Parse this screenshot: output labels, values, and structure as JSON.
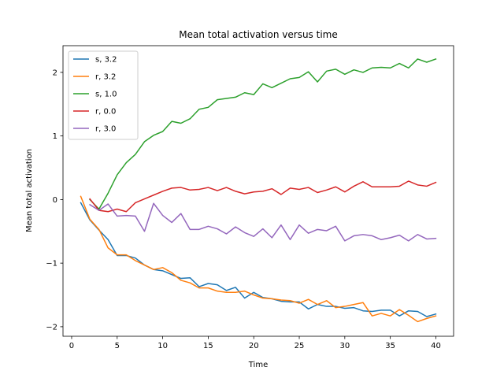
{
  "chart_data": {
    "type": "line",
    "title": "Mean total activation versus time",
    "xlabel": "Time",
    "ylabel": "Mean total activation",
    "xlim": [
      -0.95,
      41.95
    ],
    "ylim": [
      -2.15,
      2.42
    ],
    "xticks": [
      0,
      5,
      10,
      15,
      20,
      25,
      30,
      35,
      40
    ],
    "yticks": [
      -2,
      -1,
      0,
      1,
      2
    ],
    "xtick_labels": [
      "0",
      "5",
      "10",
      "15",
      "20",
      "25",
      "30",
      "35",
      "40"
    ],
    "ytick_labels": [
      "−2",
      "−1",
      "0",
      "1",
      "2"
    ],
    "grid": false,
    "legend_position": "upper left",
    "series": [
      {
        "name": "s, 3.2",
        "color": "#1f77b4",
        "x": [
          1,
          2,
          3,
          4,
          5,
          6,
          7,
          8,
          9,
          10,
          11,
          12,
          13,
          14,
          15,
          16,
          17,
          18,
          19,
          20,
          21,
          22,
          23,
          24,
          25,
          26,
          27,
          28,
          29,
          30,
          31,
          32,
          33,
          34,
          35,
          36,
          37,
          38,
          39,
          40
        ],
        "y": [
          -0.05,
          -0.32,
          -0.48,
          -0.63,
          -0.88,
          -0.88,
          -0.92,
          -1.03,
          -1.1,
          -1.12,
          -1.18,
          -1.24,
          -1.23,
          -1.37,
          -1.32,
          -1.34,
          -1.43,
          -1.38,
          -1.55,
          -1.46,
          -1.54,
          -1.56,
          -1.6,
          -1.61,
          -1.61,
          -1.72,
          -1.65,
          -1.68,
          -1.68,
          -1.71,
          -1.7,
          -1.75,
          -1.76,
          -1.74,
          -1.74,
          -1.83,
          -1.75,
          -1.76,
          -1.84,
          -1.8
        ]
      },
      {
        "name": "r, 3.2",
        "color": "#ff7f0e",
        "x": [
          1,
          2,
          3,
          4,
          5,
          6,
          7,
          8,
          9,
          10,
          11,
          12,
          13,
          14,
          15,
          16,
          17,
          18,
          19,
          20,
          21,
          22,
          23,
          24,
          25,
          26,
          27,
          28,
          29,
          30,
          31,
          32,
          33,
          34,
          35,
          36,
          37,
          38,
          39,
          40
        ],
        "y": [
          0.05,
          -0.31,
          -0.47,
          -0.76,
          -0.87,
          -0.87,
          -0.96,
          -1.03,
          -1.1,
          -1.07,
          -1.15,
          -1.27,
          -1.31,
          -1.39,
          -1.39,
          -1.44,
          -1.46,
          -1.46,
          -1.44,
          -1.5,
          -1.55,
          -1.56,
          -1.58,
          -1.59,
          -1.63,
          -1.57,
          -1.65,
          -1.59,
          -1.7,
          -1.68,
          -1.65,
          -1.62,
          -1.83,
          -1.79,
          -1.83,
          -1.73,
          -1.82,
          -1.92,
          -1.87,
          -1.83
        ]
      },
      {
        "name": "s, 1.0",
        "color": "#2ca02c",
        "x": [
          2,
          3,
          4,
          5,
          6,
          7,
          8,
          9,
          10,
          11,
          12,
          13,
          14,
          15,
          16,
          17,
          18,
          19,
          20,
          21,
          22,
          23,
          24,
          25,
          26,
          27,
          28,
          29,
          30,
          31,
          32,
          33,
          34,
          35,
          36,
          37,
          38,
          39,
          40
        ],
        "y": [
          0.0,
          -0.15,
          0.1,
          0.39,
          0.58,
          0.71,
          0.91,
          1.01,
          1.07,
          1.23,
          1.2,
          1.27,
          1.42,
          1.45,
          1.57,
          1.59,
          1.61,
          1.68,
          1.65,
          1.82,
          1.76,
          1.83,
          1.9,
          1.92,
          2.01,
          1.85,
          2.02,
          2.05,
          1.97,
          2.04,
          2.0,
          2.07,
          2.08,
          2.07,
          2.14,
          2.07,
          2.21,
          2.16,
          2.21
        ]
      },
      {
        "name": "r, 0.0",
        "color": "#d62728",
        "x": [
          2,
          3,
          4,
          5,
          6,
          7,
          8,
          9,
          10,
          11,
          12,
          13,
          14,
          15,
          16,
          17,
          18,
          19,
          20,
          21,
          22,
          23,
          24,
          25,
          26,
          27,
          28,
          29,
          30,
          31,
          32,
          33,
          34,
          35,
          36,
          37,
          38,
          39,
          40
        ],
        "y": [
          0.01,
          -0.17,
          -0.19,
          -0.15,
          -0.19,
          -0.05,
          0.01,
          0.07,
          0.13,
          0.18,
          0.19,
          0.15,
          0.16,
          0.19,
          0.14,
          0.19,
          0.13,
          0.09,
          0.12,
          0.13,
          0.17,
          0.08,
          0.18,
          0.16,
          0.19,
          0.11,
          0.15,
          0.2,
          0.12,
          0.21,
          0.28,
          0.2,
          0.2,
          0.2,
          0.21,
          0.29,
          0.23,
          0.21,
          0.27
        ]
      },
      {
        "name": "r, 3.0",
        "color": "#9467bd",
        "x": [
          2,
          3,
          4,
          5,
          6,
          7,
          8,
          9,
          10,
          11,
          12,
          13,
          14,
          15,
          16,
          17,
          18,
          19,
          20,
          21,
          22,
          23,
          24,
          25,
          26,
          27,
          28,
          29,
          30,
          31,
          32,
          33,
          34,
          35,
          36,
          37,
          38,
          39,
          40
        ],
        "y": [
          -0.08,
          -0.17,
          -0.07,
          -0.26,
          -0.25,
          -0.26,
          -0.5,
          -0.06,
          -0.25,
          -0.36,
          -0.22,
          -0.47,
          -0.47,
          -0.42,
          -0.46,
          -0.54,
          -0.43,
          -0.52,
          -0.58,
          -0.46,
          -0.6,
          -0.4,
          -0.63,
          -0.4,
          -0.53,
          -0.47,
          -0.49,
          -0.42,
          -0.65,
          -0.57,
          -0.55,
          -0.57,
          -0.63,
          -0.6,
          -0.56,
          -0.65,
          -0.55,
          -0.62,
          -0.61
        ]
      }
    ]
  }
}
